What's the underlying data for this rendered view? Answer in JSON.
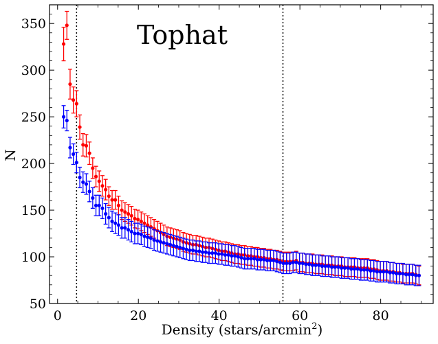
{
  "chart_data": {
    "type": "scatter",
    "title": "Tophat",
    "xlabel": "Density (stars/arcmin",
    "xlabel_sup": "2",
    "xlabel_end": ")",
    "ylabel": "N",
    "xlim": [
      -2,
      93
    ],
    "ylim": [
      50,
      370
    ],
    "xticks": [
      0,
      20,
      40,
      60,
      80
    ],
    "yticks": [
      50,
      100,
      150,
      200,
      250,
      300,
      350
    ],
    "vlines": [
      4.7,
      55.8
    ],
    "series": [
      {
        "name": "red",
        "color": "#ff0000",
        "x": [
          1.5,
          2.3,
          3.1,
          3.9,
          4.7,
          5.5,
          6.3,
          7.1,
          7.9,
          8.7,
          9.5,
          10.3,
          11.1,
          11.9,
          12.7,
          13.5,
          14.3,
          15.1,
          15.9,
          16.7,
          17.5,
          18.3,
          19.1,
          19.9,
          20.7,
          21.5,
          22.3,
          23.1,
          23.9,
          24.7,
          25.5,
          26.3,
          27.1,
          27.9,
          28.7,
          29.5,
          30.3,
          31.1,
          31.9,
          32.7,
          33.5,
          34.3,
          35.1,
          35.9,
          36.7,
          37.5,
          38.3,
          39.1,
          39.9,
          40.7,
          41.5,
          42.3,
          43.1,
          43.9,
          44.7,
          45.5,
          46.3,
          47.1,
          47.9,
          48.7,
          49.5,
          50.3,
          51.1,
          51.9,
          52.7,
          53.5,
          54.3,
          55.1,
          55.9,
          56.7,
          57.5,
          58.3,
          59.1,
          59.9,
          60.7,
          61.5,
          62.3,
          63.1,
          63.9,
          64.7,
          65.5,
          66.3,
          67.1,
          67.9,
          68.7,
          69.5,
          70.3,
          71.1,
          71.9,
          72.7,
          73.5,
          74.3,
          75.1,
          75.9,
          76.7,
          77.5,
          78.3,
          79.1,
          79.9,
          80.7,
          81.5,
          82.3,
          83.1,
          83.9,
          84.7,
          85.5,
          86.3,
          87.1,
          87.9,
          88.7,
          89.5
        ],
        "y": [
          328,
          348,
          285,
          268,
          264,
          239,
          220,
          219,
          211,
          195,
          186,
          181,
          176,
          172,
          165,
          161,
          161,
          155,
          150,
          148,
          146,
          144,
          141,
          140,
          138,
          136,
          134,
          132,
          130,
          128,
          126,
          124,
          122,
          121,
          120,
          119,
          118,
          116,
          115,
          114,
          113,
          113,
          112,
          111,
          110,
          110,
          109,
          108,
          107,
          106,
          106,
          105,
          104,
          103,
          103,
          102,
          102,
          101,
          101,
          100,
          100,
          99,
          99,
          98,
          98,
          97,
          97,
          96,
          95,
          95,
          95,
          95,
          96,
          94,
          94,
          93,
          93,
          93,
          92,
          92,
          92,
          91,
          91,
          91,
          90,
          90,
          90,
          89,
          89,
          89,
          89,
          88,
          88,
          88,
          88,
          87,
          87,
          86,
          85,
          85,
          85,
          84,
          84,
          83,
          83,
          82,
          82,
          82,
          82,
          81,
          80
        ],
        "err": [
          18,
          15,
          16,
          14,
          14,
          13,
          12,
          12,
          12,
          11,
          11,
          11,
          11,
          11,
          10,
          10,
          10,
          10,
          10,
          10,
          10,
          10,
          10,
          10,
          10,
          10,
          10,
          10,
          10,
          10,
          10,
          10,
          10,
          10,
          10,
          10,
          10,
          10,
          10,
          10,
          10,
          10,
          10,
          10,
          10,
          10,
          10,
          10,
          10,
          10,
          10,
          10,
          10,
          10,
          10,
          10,
          10,
          10,
          10,
          10,
          10,
          10,
          10,
          10,
          10,
          10,
          10,
          10,
          10,
          10,
          10,
          10,
          10,
          10,
          10,
          10,
          10,
          10,
          10,
          10,
          10,
          10,
          10,
          10,
          10,
          10,
          10,
          10,
          10,
          10,
          10,
          10,
          10,
          10,
          10,
          10,
          10,
          10,
          10,
          10,
          10,
          10,
          10,
          10,
          10,
          10,
          10,
          10,
          10,
          10,
          10
        ]
      },
      {
        "name": "blue",
        "color": "#0000ff",
        "x": [
          1.5,
          2.3,
          3.1,
          3.9,
          4.7,
          5.5,
          6.3,
          7.1,
          7.9,
          8.7,
          9.5,
          10.3,
          11.1,
          11.9,
          12.7,
          13.5,
          14.3,
          15.1,
          15.9,
          16.7,
          17.5,
          18.3,
          19.1,
          19.9,
          20.7,
          21.5,
          22.3,
          23.1,
          23.9,
          24.7,
          25.5,
          26.3,
          27.1,
          27.9,
          28.7,
          29.5,
          30.3,
          31.1,
          31.9,
          32.7,
          33.5,
          34.3,
          35.1,
          35.9,
          36.7,
          37.5,
          38.3,
          39.1,
          39.9,
          40.7,
          41.5,
          42.3,
          43.1,
          43.9,
          44.7,
          45.5,
          46.3,
          47.1,
          47.9,
          48.7,
          49.5,
          50.3,
          51.1,
          51.9,
          52.7,
          53.5,
          54.3,
          55.1,
          55.9,
          56.7,
          57.5,
          58.3,
          59.1,
          59.9,
          60.7,
          61.5,
          62.3,
          63.1,
          63.9,
          64.7,
          65.5,
          66.3,
          67.1,
          67.9,
          68.7,
          69.5,
          70.3,
          71.1,
          71.9,
          72.7,
          73.5,
          74.3,
          75.1,
          75.9,
          76.7,
          77.5,
          78.3,
          79.1,
          79.9,
          80.7,
          81.5,
          82.3,
          83.1,
          83.9,
          84.7,
          85.5,
          86.3,
          87.1,
          87.9,
          88.7,
          89.5
        ],
        "y": [
          250,
          246,
          217,
          210,
          201,
          185,
          180,
          178,
          170,
          163,
          155,
          155,
          152,
          146,
          142,
          138,
          136,
          134,
          131,
          131,
          129,
          127,
          125,
          125,
          124,
          122,
          121,
          120,
          118,
          117,
          116,
          115,
          114,
          113,
          112,
          111,
          110,
          109,
          108,
          107,
          107,
          106,
          106,
          105,
          105,
          104,
          104,
          104,
          103,
          103,
          102,
          102,
          101,
          101,
          100,
          99,
          98,
          98,
          98,
          98,
          97,
          97,
          97,
          96,
          96,
          96,
          95,
          94,
          93,
          93,
          93,
          94,
          94,
          93,
          93,
          92,
          92,
          91,
          91,
          91,
          90,
          90,
          90,
          89,
          89,
          89,
          88,
          88,
          88,
          87,
          87,
          87,
          86,
          86,
          86,
          85,
          85,
          84,
          84,
          84,
          84,
          83,
          83,
          82,
          82,
          82,
          81,
          81,
          81,
          80,
          80
        ],
        "err": [
          12,
          11,
          11,
          11,
          11,
          11,
          11,
          11,
          11,
          11,
          11,
          11,
          11,
          11,
          11,
          11,
          11,
          11,
          11,
          11,
          11,
          11,
          11,
          11,
          11,
          11,
          11,
          11,
          11,
          11,
          11,
          11,
          11,
          11,
          11,
          11,
          11,
          11,
          11,
          11,
          11,
          11,
          11,
          11,
          11,
          11,
          11,
          11,
          11,
          11,
          11,
          11,
          11,
          11,
          11,
          11,
          11,
          11,
          11,
          11,
          11,
          11,
          11,
          11,
          11,
          11,
          11,
          11,
          11,
          11,
          11,
          11,
          11,
          11,
          11,
          11,
          11,
          11,
          11,
          11,
          11,
          11,
          11,
          11,
          11,
          11,
          11,
          11,
          11,
          11,
          11,
          11,
          11,
          11,
          11,
          11,
          11,
          11,
          11,
          11,
          11,
          11,
          11,
          11,
          11,
          11,
          11,
          11,
          11,
          11,
          11
        ]
      }
    ]
  }
}
